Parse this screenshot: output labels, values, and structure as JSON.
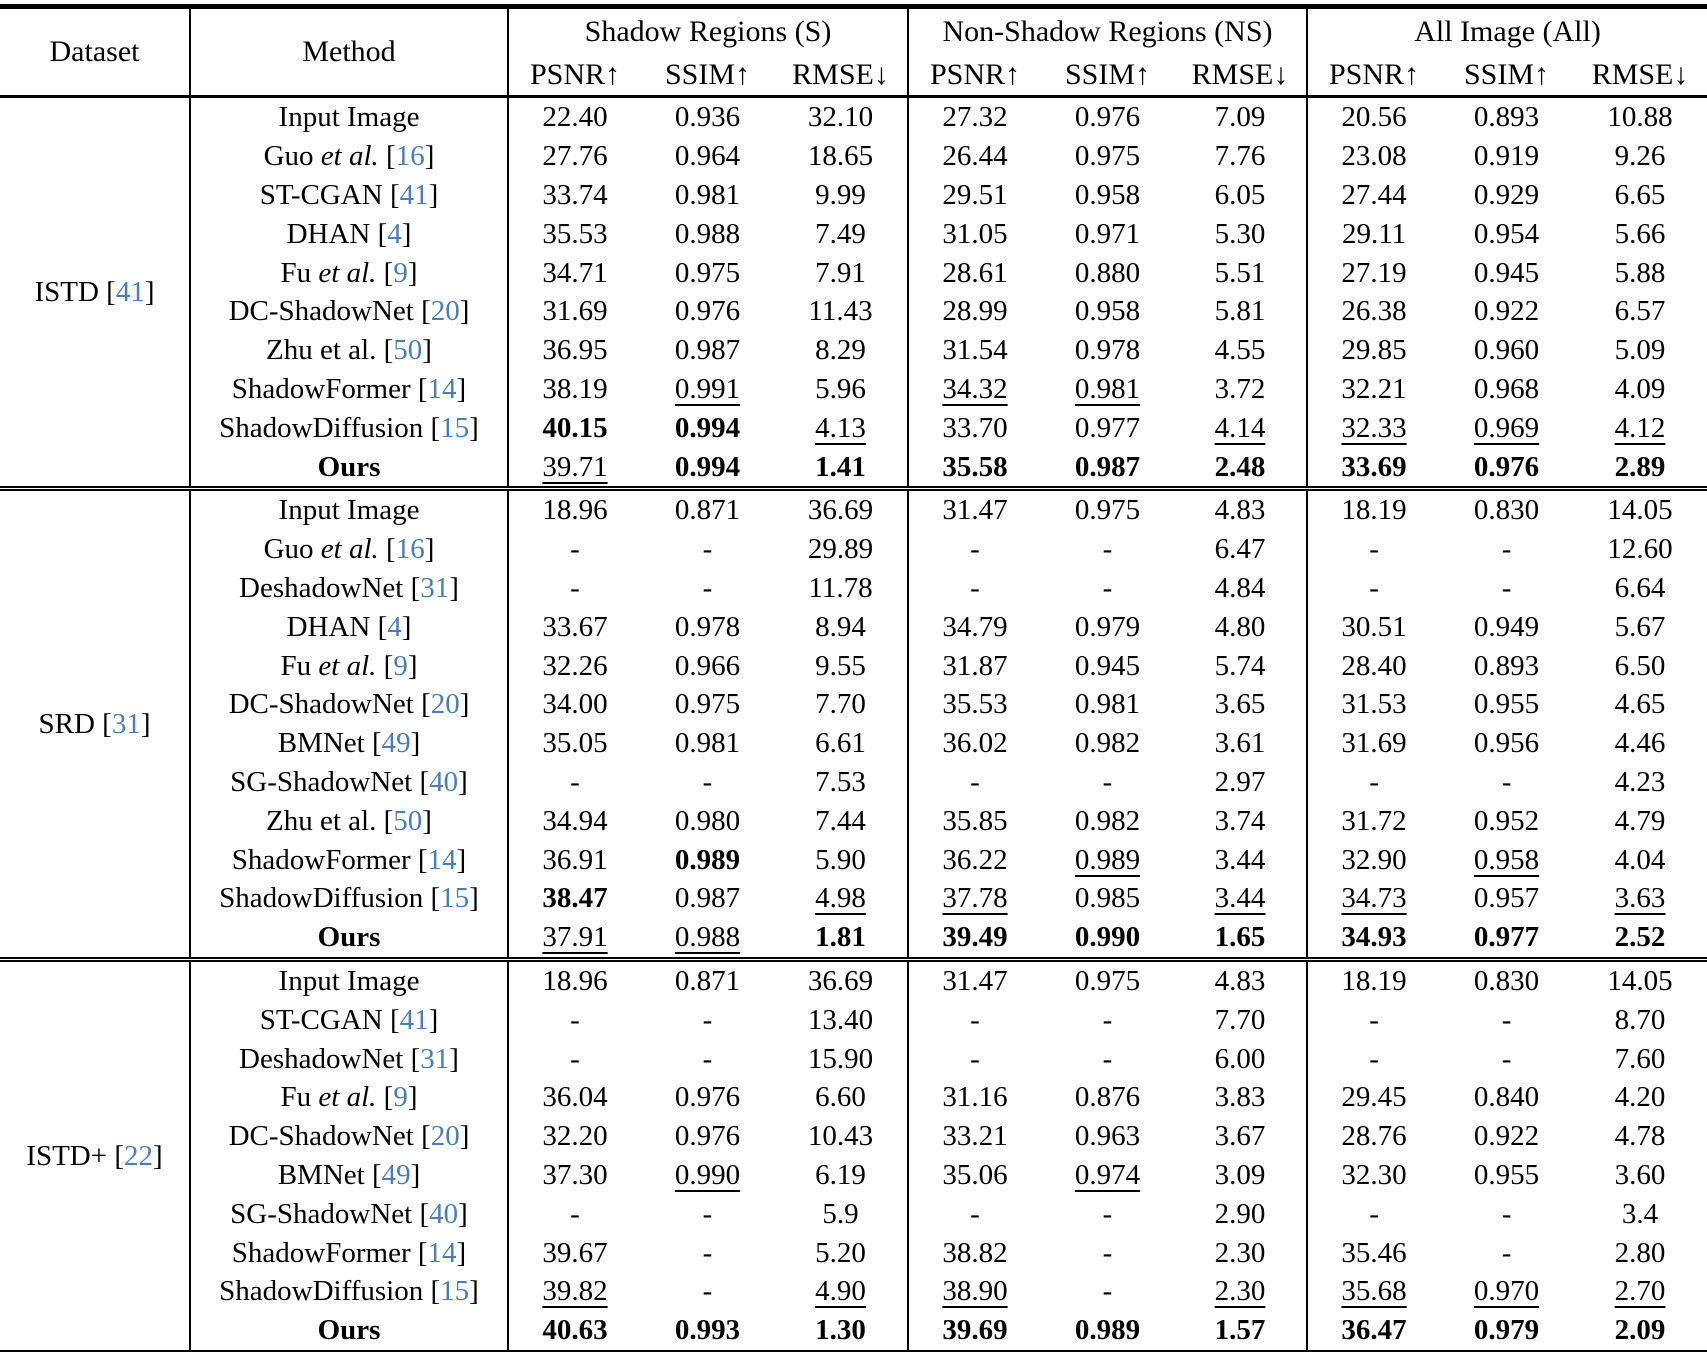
{
  "table": {
    "colors": {
      "citation": "#4a7fb6",
      "text": "#000000",
      "background": "#ffffff"
    },
    "header": {
      "dataset_label": "Dataset",
      "method_label": "Method",
      "groups": [
        {
          "label": "Shadow Regions (S)"
        },
        {
          "label": "Non-Shadow Regions (NS)"
        },
        {
          "label": "All Image (All)"
        }
      ],
      "metrics": [
        "PSNR↑",
        "SSIM↑",
        "RMSE↓"
      ]
    },
    "value_format_legend": "prefix b: = bold (best), prefix u: = underlined (second best)",
    "sections": [
      {
        "dataset": {
          "name": "ISTD",
          "cite": "41"
        },
        "rows": [
          {
            "method": {
              "name": "Input Image"
            },
            "values": [
              "22.40",
              "0.936",
              "32.10",
              "27.32",
              "0.976",
              "7.09",
              "20.56",
              "0.893",
              "10.88"
            ]
          },
          {
            "method": {
              "name": "Guo",
              "etal": true,
              "cite": "16"
            },
            "values": [
              "27.76",
              "0.964",
              "18.65",
              "26.44",
              "0.975",
              "7.76",
              "23.08",
              "0.919",
              "9.26"
            ]
          },
          {
            "method": {
              "name": "ST-CGAN",
              "cite": "41"
            },
            "values": [
              "33.74",
              "0.981",
              "9.99",
              "29.51",
              "0.958",
              "6.05",
              "27.44",
              "0.929",
              "6.65"
            ]
          },
          {
            "method": {
              "name": "DHAN",
              "cite": "4"
            },
            "values": [
              "35.53",
              "0.988",
              "7.49",
              "31.05",
              "0.971",
              "5.30",
              "29.11",
              "0.954",
              "5.66"
            ]
          },
          {
            "method": {
              "name": "Fu",
              "etal": true,
              "cite": "9"
            },
            "values": [
              "34.71",
              "0.975",
              "7.91",
              "28.61",
              "0.880",
              "5.51",
              "27.19",
              "0.945",
              "5.88"
            ]
          },
          {
            "method": {
              "name": "DC-ShadowNet",
              "cite": "20"
            },
            "values": [
              "31.69",
              "0.976",
              "11.43",
              "28.99",
              "0.958",
              "5.81",
              "26.38",
              "0.922",
              "6.57"
            ]
          },
          {
            "method": {
              "name": "Zhu et al.",
              "cite": "50"
            },
            "values": [
              "36.95",
              "0.987",
              "8.29",
              "31.54",
              "0.978",
              "4.55",
              "29.85",
              "0.960",
              "5.09"
            ]
          },
          {
            "method": {
              "name": "ShadowFormer",
              "cite": "14"
            },
            "values": [
              "38.19",
              "u:0.991",
              "5.96",
              "u:34.32",
              "u:0.981",
              "3.72",
              "32.21",
              "0.968",
              "4.09"
            ]
          },
          {
            "method": {
              "name": "ShadowDiffusion",
              "cite": "15"
            },
            "values": [
              "b:40.15",
              "b:0.994",
              "u:4.13",
              "33.70",
              "0.977",
              "u:4.14",
              "u:32.33",
              "u:0.969",
              "u:4.12"
            ]
          },
          {
            "method": {
              "name": "Ours",
              "bold": true
            },
            "values": [
              "u:39.71",
              "b:0.994",
              "b:1.41",
              "b:35.58",
              "b:0.987",
              "b:2.48",
              "b:33.69",
              "b:0.976",
              "b:2.89"
            ]
          }
        ]
      },
      {
        "dataset": {
          "name": "SRD",
          "cite": "31"
        },
        "rows": [
          {
            "method": {
              "name": "Input Image"
            },
            "values": [
              "18.96",
              "0.871",
              "36.69",
              "31.47",
              "0.975",
              "4.83",
              "18.19",
              "0.830",
              "14.05"
            ]
          },
          {
            "method": {
              "name": "Guo",
              "etal": true,
              "cite": "16"
            },
            "values": [
              "-",
              "-",
              "29.89",
              "-",
              "-",
              "6.47",
              "-",
              "-",
              "12.60"
            ]
          },
          {
            "method": {
              "name": "DeshadowNet",
              "cite": "31"
            },
            "values": [
              "-",
              "-",
              "11.78",
              "-",
              "-",
              "4.84",
              "-",
              "-",
              "6.64"
            ]
          },
          {
            "method": {
              "name": "DHAN",
              "cite": "4"
            },
            "values": [
              "33.67",
              "0.978",
              "8.94",
              "34.79",
              "0.979",
              "4.80",
              "30.51",
              "0.949",
              "5.67"
            ]
          },
          {
            "method": {
              "name": "Fu",
              "etal": true,
              "cite": "9"
            },
            "values": [
              "32.26",
              "0.966",
              "9.55",
              "31.87",
              "0.945",
              "5.74",
              "28.40",
              "0.893",
              "6.50"
            ]
          },
          {
            "method": {
              "name": "DC-ShadowNet",
              "cite": "20"
            },
            "values": [
              "34.00",
              "0.975",
              "7.70",
              "35.53",
              "0.981",
              "3.65",
              "31.53",
              "0.955",
              "4.65"
            ]
          },
          {
            "method": {
              "name": "BMNet",
              "cite": "49"
            },
            "values": [
              "35.05",
              "0.981",
              "6.61",
              "36.02",
              "0.982",
              "3.61",
              "31.69",
              "0.956",
              "4.46"
            ]
          },
          {
            "method": {
              "name": "SG-ShadowNet",
              "cite": "40"
            },
            "values": [
              "-",
              "-",
              "7.53",
              "-",
              "-",
              "2.97",
              "-",
              "-",
              "4.23"
            ]
          },
          {
            "method": {
              "name": "Zhu et al.",
              "cite": "50"
            },
            "values": [
              "34.94",
              "0.980",
              "7.44",
              "35.85",
              "0.982",
              "3.74",
              "31.72",
              "0.952",
              "4.79"
            ]
          },
          {
            "method": {
              "name": "ShadowFormer",
              "cite": "14"
            },
            "values": [
              "36.91",
              "b:0.989",
              "5.90",
              "36.22",
              "u:0.989",
              "3.44",
              "32.90",
              "u:0.958",
              "4.04"
            ]
          },
          {
            "method": {
              "name": "ShadowDiffusion",
              "cite": "15"
            },
            "values": [
              "b:38.47",
              "0.987",
              "u:4.98",
              "u:37.78",
              "0.985",
              "u:3.44",
              "u:34.73",
              "0.957",
              "u:3.63"
            ]
          },
          {
            "method": {
              "name": "Ours",
              "bold": true
            },
            "values": [
              "u:37.91",
              "u:0.988",
              "b:1.81",
              "b:39.49",
              "b:0.990",
              "b:1.65",
              "b:34.93",
              "b:0.977",
              "b:2.52"
            ]
          }
        ]
      },
      {
        "dataset": {
          "name": "ISTD+",
          "cite": "22"
        },
        "rows": [
          {
            "method": {
              "name": "Input Image"
            },
            "values": [
              "18.96",
              "0.871",
              "36.69",
              "31.47",
              "0.975",
              "4.83",
              "18.19",
              "0.830",
              "14.05"
            ]
          },
          {
            "method": {
              "name": "ST-CGAN",
              "cite": "41"
            },
            "values": [
              "-",
              "-",
              "13.40",
              "-",
              "-",
              "7.70",
              "-",
              "-",
              "8.70"
            ]
          },
          {
            "method": {
              "name": "DeshadowNet",
              "cite": "31"
            },
            "values": [
              "-",
              "-",
              "15.90",
              "-",
              "-",
              "6.00",
              "-",
              "-",
              "7.60"
            ]
          },
          {
            "method": {
              "name": "Fu",
              "etal": true,
              "cite": "9"
            },
            "values": [
              "36.04",
              "0.976",
              "6.60",
              "31.16",
              "0.876",
              "3.83",
              "29.45",
              "0.840",
              "4.20"
            ]
          },
          {
            "method": {
              "name": "DC-ShadowNet",
              "cite": "20"
            },
            "values": [
              "32.20",
              "0.976",
              "10.43",
              "33.21",
              "0.963",
              "3.67",
              "28.76",
              "0.922",
              "4.78"
            ]
          },
          {
            "method": {
              "name": "BMNet",
              "cite": "49"
            },
            "values": [
              "37.30",
              "u:0.990",
              "6.19",
              "35.06",
              "u:0.974",
              "3.09",
              "32.30",
              "0.955",
              "3.60"
            ]
          },
          {
            "method": {
              "name": "SG-ShadowNet",
              "cite": "40"
            },
            "values": [
              "-",
              "-",
              "5.9",
              "-",
              "-",
              "2.90",
              "-",
              "-",
              "3.4"
            ]
          },
          {
            "method": {
              "name": "ShadowFormer",
              "cite": "14"
            },
            "values": [
              "39.67",
              "-",
              "5.20",
              "38.82",
              "-",
              "2.30",
              "35.46",
              "-",
              "2.80"
            ]
          },
          {
            "method": {
              "name": "ShadowDiffusion",
              "cite": "15"
            },
            "values": [
              "u:39.82",
              "-",
              "u:4.90",
              "u:38.90",
              "-",
              "u:2.30",
              "u:35.68",
              "u:0.970",
              "u:2.70"
            ]
          },
          {
            "method": {
              "name": "Ours",
              "bold": true
            },
            "values": [
              "b:40.63",
              "b:0.993",
              "b:1.30",
              "b:39.69",
              "b:0.989",
              "b:1.57",
              "b:36.47",
              "b:0.979",
              "b:2.09"
            ]
          }
        ]
      }
    ]
  }
}
